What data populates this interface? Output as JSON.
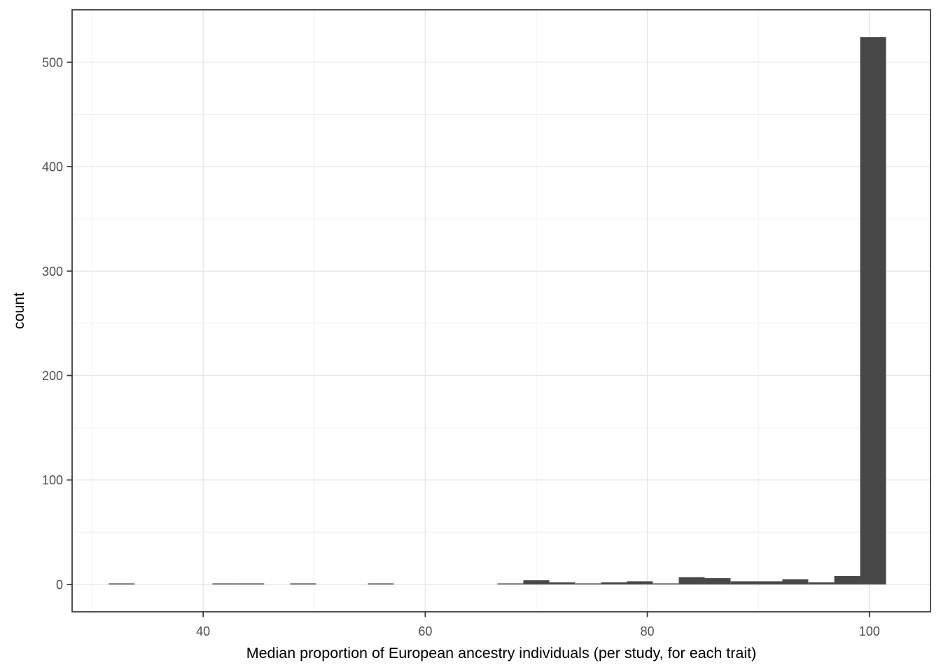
{
  "chart_data": {
    "type": "bar",
    "subtype": "histogram",
    "title": "",
    "xlabel": "Median proportion of European ancestry individuals (per study, for each trait)",
    "ylabel": "count",
    "bin_width": 2.33,
    "bin_centers": [
      32.67,
      35.0,
      37.33,
      39.67,
      42.0,
      44.33,
      46.67,
      49.0,
      51.33,
      53.67,
      56.0,
      58.33,
      60.67,
      63.0,
      65.33,
      67.67,
      70.0,
      72.33,
      74.67,
      77.0,
      79.33,
      81.67,
      84.0,
      86.33,
      88.67,
      91.0,
      93.33,
      95.67,
      98.0,
      100.33
    ],
    "counts": [
      1,
      0,
      0,
      0,
      1,
      1,
      0,
      1,
      0,
      0,
      1,
      0,
      0,
      0,
      0,
      1,
      4,
      2,
      1,
      2,
      3,
      1,
      7,
      6,
      3,
      3,
      5,
      2,
      8,
      524
    ],
    "x_ticks": [
      40,
      60,
      80,
      100
    ],
    "x_minor_ticks": [
      30,
      50,
      70,
      90
    ],
    "y_ticks": [
      0,
      100,
      200,
      300,
      400,
      500
    ],
    "y_minor_ticks": [
      50,
      150,
      250,
      350,
      450,
      550
    ],
    "xlim": [
      28.2,
      105.5
    ],
    "ylim": [
      -26.2,
      550.2
    ],
    "grid": true,
    "legend": "none",
    "colors": {
      "bar_fill": "#474747",
      "panel_border": "#333333",
      "grid_major": "#e5e5e5",
      "grid_minor": "#f0f0f0",
      "tick_mark": "#333333",
      "tick_label": "#4d4d4d",
      "axis_title": "#000000",
      "background": "#ffffff"
    }
  }
}
